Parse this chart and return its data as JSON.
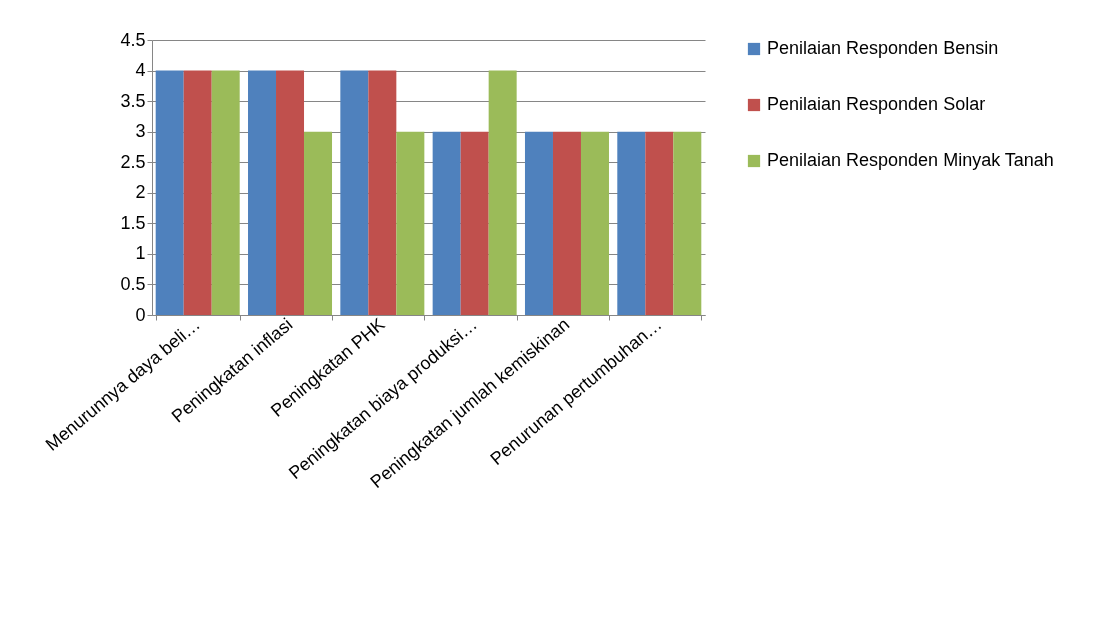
{
  "chart_data": {
    "type": "bar",
    "categories": [
      "Menurunnya daya beli…",
      "Peningkatan inflasi",
      "Peningkatan PHK",
      "Peningkatan biaya produksi…",
      "Peningkatan jumlah kemiskinan",
      "Penurunan pertumbuhan…"
    ],
    "series": [
      {
        "name": "Penilaian Responden Bensin",
        "color": "#4f81bd",
        "values": [
          4,
          4,
          4,
          3,
          3,
          3
        ]
      },
      {
        "name": "Penilaian Responden Solar",
        "color": "#c0504d",
        "values": [
          4,
          4,
          4,
          3,
          3,
          3
        ]
      },
      {
        "name": "Penilaian Responden Minyak Tanah",
        "color": "#9bbb59",
        "values": [
          4,
          3,
          3,
          4,
          3,
          3
        ]
      }
    ],
    "ylim": [
      0,
      4.5
    ],
    "yticks": [
      0,
      0.5,
      1,
      1.5,
      2,
      2.5,
      3,
      3.5,
      4,
      4.5
    ],
    "grid": "y",
    "legend": "right"
  }
}
